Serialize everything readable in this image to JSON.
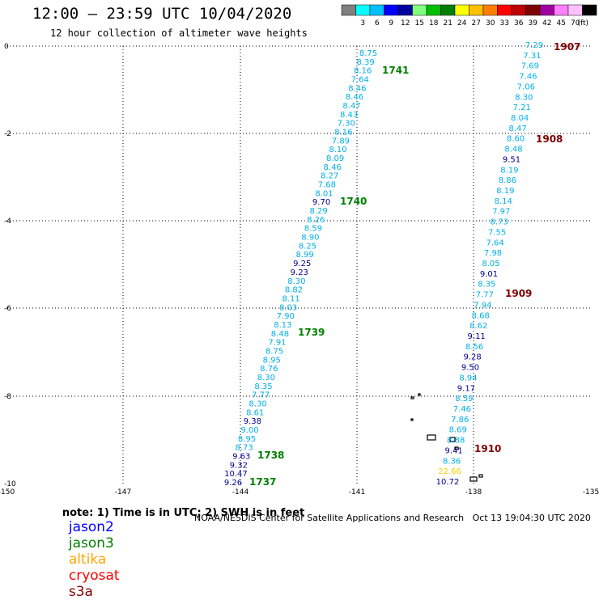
{
  "header": {
    "title": "12:00 — 23:59 UTC 10/04/2020",
    "subtitle": "12 hour collection of altimeter wave heights"
  },
  "colors": {
    "scale": [
      "#808080",
      "#00ffff",
      "#00c0ff",
      "#0000ff",
      "#0000a0",
      "#80ff80",
      "#00c000",
      "#008000",
      "#ffff00",
      "#ffc000",
      "#ff8000",
      "#ff0000",
      "#c00000",
      "#800000",
      "#a000a0",
      "#ff80ff",
      "#ffc0ff",
      "#000000"
    ],
    "jason2": "#0000ff",
    "jason3": "#008000",
    "altika": "#ffa500",
    "cryosat": "#ff0000",
    "s3a": "#800000",
    "wave_light": "#00b0e8",
    "wave_dark": "#000090",
    "wave_yellow": "#ffd000",
    "pass_green": "#008000",
    "pass_maroon": "#800000",
    "grid": "#000000"
  },
  "color_scale": {
    "ticks": [
      "3",
      "6",
      "9",
      "12",
      "15",
      "18",
      "21",
      "24",
      "27",
      "30",
      "33",
      "36",
      "39",
      "42",
      "45",
      "70"
    ],
    "unit": "(ft)"
  },
  "axes": {
    "x_ticks": [
      "-150",
      "-147",
      "-144",
      "-141",
      "-138",
      "-135"
    ],
    "y_ticks": [
      "0",
      "-2",
      "-4",
      "-6",
      "-8",
      "-10"
    ]
  },
  "tracks": [
    {
      "id": "track-west",
      "values": [
        "8.75",
        "8.39",
        "8.16",
        "7.64",
        "8.46",
        "8.46",
        "8.47",
        "8.43",
        "7.30",
        "8.16",
        "7.89",
        "8.10",
        "8.09",
        "8.46",
        "8.27",
        "7.68",
        "8.01",
        "9.70",
        "8.29",
        "8.26",
        "8.59",
        "8.90",
        "8.25",
        "8.99",
        "9.25",
        "9.23",
        "8.30",
        "8.82",
        "8.11",
        "8.03",
        "7.90",
        "8.13",
        "8.48",
        "7.91",
        "8.75",
        "8.95",
        "8.76",
        "8.30",
        "8.35",
        "7.77",
        "8.30",
        "8.61",
        "9.38",
        "9.00",
        "8.95",
        "8.73",
        "9.63",
        "9.32",
        "10.47",
        "9.26"
      ],
      "dark": [
        "9.70",
        "9.25",
        "9.23",
        "9.38",
        "9.63",
        "9.32",
        "10.47",
        "9.26"
      ]
    },
    {
      "id": "track-east",
      "values": [
        "7.29",
        "7.31",
        "7.69",
        "7.46",
        "7.06",
        "8.30",
        "7.21",
        "8.04",
        "8.47",
        "8.60",
        "8.48",
        "9.51",
        "8.19",
        "8.86",
        "8.19",
        "8.14",
        "7.97",
        "8.73",
        "7.55",
        "7.64",
        "7.98",
        "8.05",
        "9.01",
        "8.35",
        "7.77",
        "7.94",
        "8.68",
        "8.62",
        "9.11",
        "8.56",
        "9.28",
        "9.50",
        "8.94",
        "9.17",
        "8.59",
        "7.46",
        "7.86",
        "8.69",
        "8.88",
        "9.41",
        "8.36",
        "22.66",
        "10.72"
      ],
      "dark": [
        "9.51",
        "9.01",
        "9.11",
        "9.28",
        "9.50",
        "9.17",
        "9.41",
        "10.72"
      ],
      "yellow": [
        "22.66"
      ]
    }
  ],
  "pass_labels": [
    {
      "text": "1741",
      "color": "green"
    },
    {
      "text": "1740",
      "color": "green"
    },
    {
      "text": "1739",
      "color": "green"
    },
    {
      "text": "1738",
      "color": "green"
    },
    {
      "text": "1737",
      "color": "green"
    },
    {
      "text": "1907",
      "color": "maroon"
    },
    {
      "text": "1908",
      "color": "maroon"
    },
    {
      "text": "1909",
      "color": "maroon"
    },
    {
      "text": "1910",
      "color": "maroon"
    }
  ],
  "legend": {
    "note": "note: 1) Time is in UTC; 2) SWH is in feet",
    "jason2": "jason2",
    "jason3": "jason3",
    "altika": "altika",
    "cryosat": "cryosat",
    "s3a": "s3a"
  },
  "footer": {
    "org": "NOAA/NESDIS Center for Satellite Applications and Research",
    "timestamp": "Oct 13 19:04:30 UTC 2020"
  }
}
